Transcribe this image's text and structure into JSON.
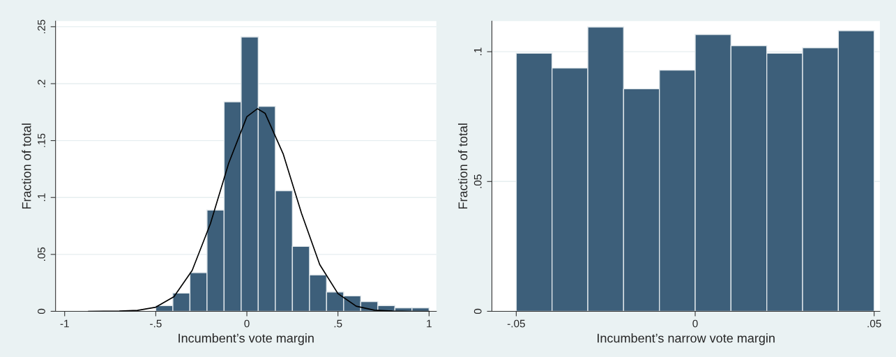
{
  "chart_data": [
    {
      "type": "histogram",
      "xlabel": "Incumbent’s vote margin",
      "ylabel": "Fraction of total",
      "bins": [
        -0.5,
        -0.40625,
        -0.3125,
        -0.21875,
        -0.125,
        -0.03125,
        0.0625,
        0.15625,
        0.25,
        0.34375,
        0.4375,
        0.53125,
        0.625,
        0.71875,
        0.8125,
        0.90625,
        1.0
      ],
      "values": [
        0.005,
        0.016,
        0.034,
        0.089,
        0.184,
        0.241,
        0.18,
        0.106,
        0.057,
        0.032,
        0.017,
        0.0135,
        0.0085,
        0.005,
        0.003,
        0.003
      ],
      "color": "#3d5f7a",
      "series": [
        {
          "type": "line",
          "color": "#000000",
          "x": [
            -0.87,
            -0.7,
            -0.6,
            -0.5,
            -0.4,
            -0.3,
            -0.2,
            -0.1,
            0,
            0.058,
            0.1,
            0.2,
            0.3,
            0.4,
            0.5,
            0.6,
            0.7,
            0.8,
            0.9,
            1.0
          ],
          "values": [
            0,
            0.0002,
            0.0008,
            0.0036,
            0.0129,
            0.036,
            0.077,
            0.13,
            0.171,
            0.178,
            0.174,
            0.138,
            0.086,
            0.041,
            0.0155,
            0.0045,
            0.001,
            0.0002,
            0,
            0
          ]
        }
      ],
      "xlim": [
        -1.05,
        1.04
      ],
      "ylim": [
        0,
        0.255
      ],
      "xticks": [
        -1,
        {
          "value": -0.5,
          "label": "-.5"
        },
        0,
        {
          "value": 0.5,
          "label": ".5"
        },
        1
      ],
      "yticks": [
        0,
        {
          "value": 0.05,
          "label": ".05"
        },
        {
          "value": 0.1,
          "label": ".1"
        },
        {
          "value": 0.15,
          "label": ".15"
        },
        {
          "value": 0.2,
          "label": ".2"
        },
        {
          "value": 0.25,
          "label": ".25"
        }
      ],
      "grid": "y"
    },
    {
      "type": "histogram",
      "xlabel": "Incumbent’s narrow vote margin",
      "ylabel": "Fraction of total",
      "bins": [
        -0.05,
        -0.04,
        -0.03,
        -0.02,
        -0.01,
        0,
        0.01,
        0.02,
        0.03,
        0.04,
        0.05
      ],
      "values": [
        0.0994,
        0.0937,
        0.1095,
        0.0857,
        0.0929,
        0.1066,
        0.1023,
        0.0994,
        0.1015,
        0.1081
      ],
      "color": "#3d5f7a",
      "xlim": [
        -0.0568,
        0.0516
      ],
      "ylim": [
        0,
        0.1118
      ],
      "xticks": [
        {
          "value": -0.05,
          "label": "-.05"
        },
        0,
        {
          "value": 0.05,
          "label": ".05"
        }
      ],
      "yticks": [
        0,
        {
          "value": 0.05,
          "label": ".05"
        },
        {
          "value": 0.1,
          "label": ".1"
        }
      ],
      "grid": "y"
    }
  ]
}
